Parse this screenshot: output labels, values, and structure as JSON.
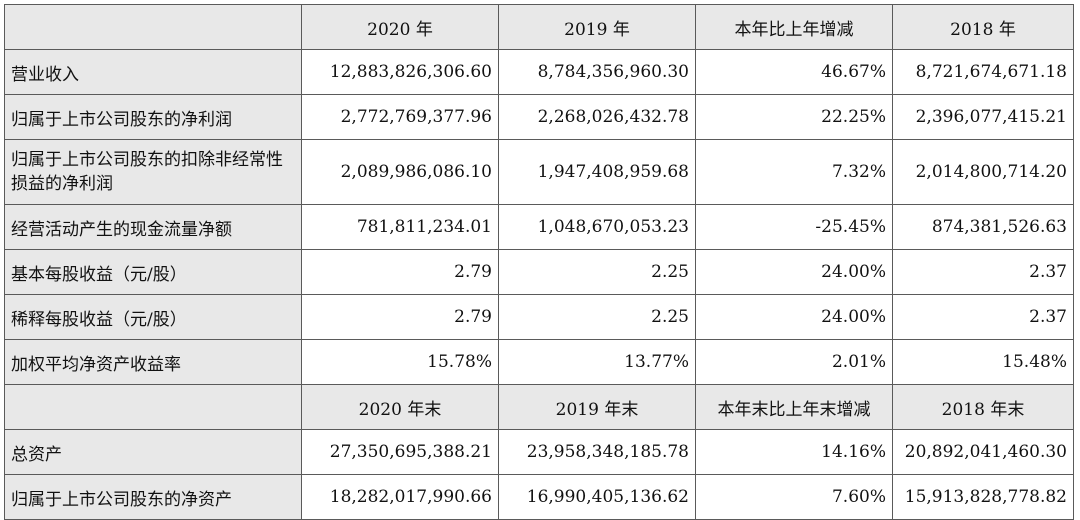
{
  "header_row_1": {
    "blank": "",
    "col1": "2020 年",
    "col2": "2019 年",
    "col3": "本年比上年增减",
    "col4": "2018 年"
  },
  "rows_1": [
    {
      "label": "营业收入",
      "v2020": "12,883,826,306.60",
      "v2019": "8,784,356,960.30",
      "change": "46.67%",
      "v2018": "8,721,674,671.18"
    },
    {
      "label": "归属于上市公司股东的净利润",
      "v2020": "2,772,769,377.96",
      "v2019": "2,268,026,432.78",
      "change": "22.25%",
      "v2018": "2,396,077,415.21"
    },
    {
      "label": "归属于上市公司股东的扣除非经常性损益的净利润",
      "v2020": "2,089,986,086.10",
      "v2019": "1,947,408,959.68",
      "change": "7.32%",
      "v2018": "2,014,800,714.20"
    },
    {
      "label": "经营活动产生的现金流量净额",
      "v2020": "781,811,234.01",
      "v2019": "1,048,670,053.23",
      "change": "-25.45%",
      "v2018": "874,381,526.63"
    },
    {
      "label": "基本每股收益（元/股）",
      "v2020": "2.79",
      "v2019": "2.25",
      "change": "24.00%",
      "v2018": "2.37"
    },
    {
      "label": "稀释每股收益（元/股）",
      "v2020": "2.79",
      "v2019": "2.25",
      "change": "24.00%",
      "v2018": "2.37"
    },
    {
      "label": "加权平均净资产收益率",
      "v2020": "15.78%",
      "v2019": "13.77%",
      "change": "2.01%",
      "v2018": "15.48%"
    }
  ],
  "header_row_2": {
    "blank": "",
    "col1": "2020 年末",
    "col2": "2019 年末",
    "col3": "本年末比上年末增减",
    "col4": "2018 年末"
  },
  "rows_2": [
    {
      "label": "总资产",
      "v2020": "27,350,695,388.21",
      "v2019": "23,958,348,185.78",
      "change": "14.16%",
      "v2018": "20,892,041,460.30"
    },
    {
      "label": "归属于上市公司股东的净资产",
      "v2020": "18,282,017,990.66",
      "v2019": "16,990,405,136.62",
      "change": "7.60%",
      "v2018": "15,913,828,778.82"
    }
  ],
  "colors": {
    "header_bg": "#e8e8e8",
    "border": "#5a5a5a",
    "text": "#111111"
  }
}
